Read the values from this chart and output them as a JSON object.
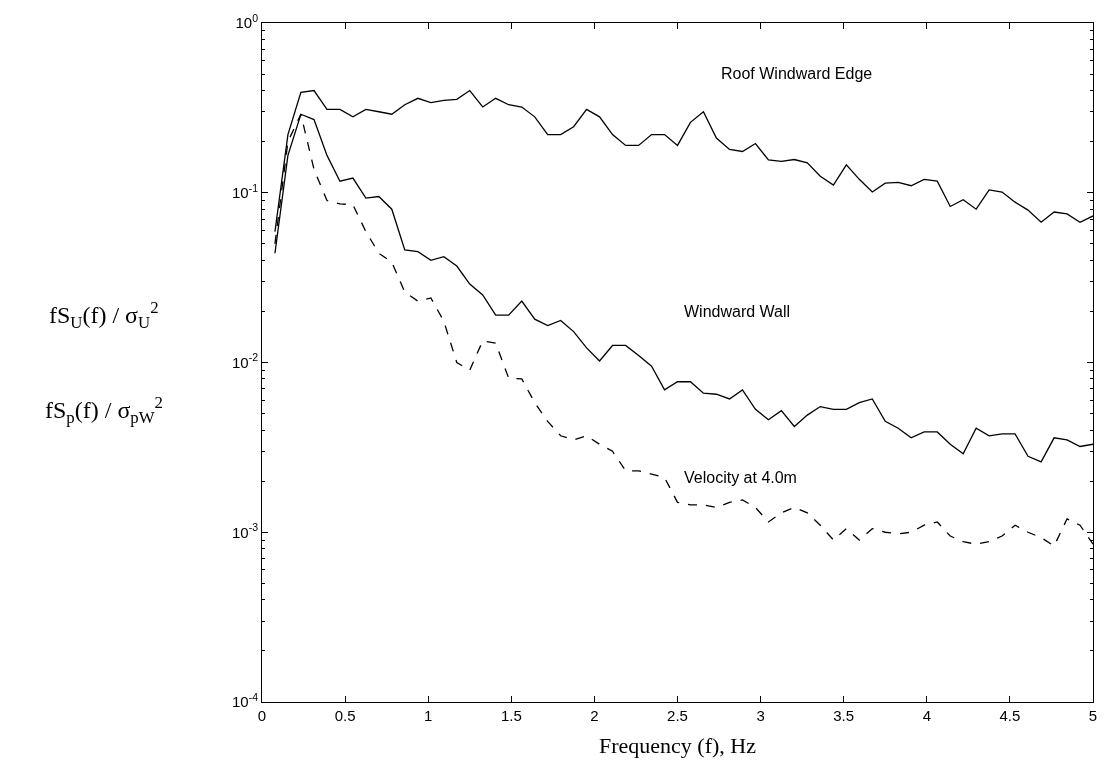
{
  "chart_data": {
    "type": "line",
    "xlabel": "Frequency (f), Hz",
    "ylabel": "fS$_{U}$(f) / σ$_{U}$$^{2}$",
    "x": [
      0.078,
      0.156,
      0.234,
      0.313,
      0.391,
      0.469,
      0.547,
      0.625,
      0.703,
      0.781,
      0.859,
      0.938,
      1.016,
      1.094,
      1.172,
      1.25,
      1.328,
      1.406,
      1.484,
      1.563,
      1.641,
      1.719,
      1.797,
      1.875,
      1.953,
      2.031,
      2.109,
      2.188,
      2.266,
      2.344,
      2.422,
      2.5,
      2.578,
      2.656,
      2.734,
      2.813,
      2.891,
      2.969,
      3.047,
      3.125,
      3.203,
      3.281,
      3.359,
      3.438,
      3.516,
      3.594,
      3.672,
      3.75,
      3.828,
      3.906,
      3.984,
      4.063,
      4.141,
      4.219,
      4.297,
      4.375,
      4.453,
      4.531,
      4.609,
      4.688,
      4.766,
      4.844,
      4.922,
      5.0
    ],
    "series": [
      {
        "color": "#000000",
        "line_style": "solid",
        "values": [
          0.059,
          0.22,
          0.39,
          0.4,
          0.31,
          0.31,
          0.28,
          0.31,
          0.3,
          0.29,
          0.33,
          0.36,
          0.34,
          0.35,
          0.355,
          0.4,
          0.32,
          0.36,
          0.33,
          0.32,
          0.28,
          0.22,
          0.22,
          0.245,
          0.31,
          0.28,
          0.22,
          0.19,
          0.19,
          0.22,
          0.22,
          0.19,
          0.26,
          0.3,
          0.21,
          0.18,
          0.175,
          0.195,
          0.156,
          0.153,
          0.157,
          0.15,
          0.125,
          0.111,
          0.146,
          0.12,
          0.101,
          0.114,
          0.115,
          0.11,
          0.12,
          0.117,
          0.083,
          0.091,
          0.08,
          0.104,
          0.101,
          0.088,
          0.079,
          0.067,
          0.077,
          0.075,
          0.067,
          0.073
        ]
      },
      {
        "color": "#000000",
        "line_style": "solid",
        "values": [
          0.044,
          0.166,
          0.29,
          0.27,
          0.166,
          0.117,
          0.122,
          0.093,
          0.095,
          0.08,
          0.046,
          0.045,
          0.04,
          0.042,
          0.037,
          0.029,
          0.025,
          0.019,
          0.019,
          0.023,
          0.018,
          0.0165,
          0.0177,
          0.0152,
          0.0122,
          0.0102,
          0.0126,
          0.0126,
          0.011,
          0.0095,
          0.0069,
          0.0077,
          0.0077,
          0.0066,
          0.0065,
          0.0061,
          0.0069,
          0.0053,
          0.0046,
          0.0052,
          0.0042,
          0.0049,
          0.0055,
          0.0053,
          0.0053,
          0.0058,
          0.0061,
          0.0045,
          0.0041,
          0.0036,
          0.0039,
          0.0039,
          0.0033,
          0.0029,
          0.0041,
          0.0037,
          0.0038,
          0.0038,
          0.0028,
          0.0026,
          0.0036,
          0.0035,
          0.0032,
          0.0033
        ]
      },
      {
        "color": "#000000",
        "line_style": "dashed",
        "values": [
          0.05,
          0.2,
          0.29,
          0.137,
          0.09,
          0.086,
          0.085,
          0.059,
          0.044,
          0.039,
          0.026,
          0.023,
          0.024,
          0.0175,
          0.01,
          0.009,
          0.0134,
          0.013,
          0.0081,
          0.008,
          0.0058,
          0.0045,
          0.0037,
          0.0035,
          0.0037,
          0.0033,
          0.003,
          0.0023,
          0.0023,
          0.0022,
          0.0021,
          0.0015,
          0.00145,
          0.00145,
          0.0014,
          0.0015,
          0.00155,
          0.0014,
          0.00115,
          0.0013,
          0.0014,
          0.0013,
          0.0011,
          0.0009,
          0.00105,
          0.0009,
          0.00105,
          0.001,
          0.00098,
          0.001,
          0.0011,
          0.00115,
          0.00095,
          0.00088,
          0.00085,
          0.00088,
          0.00095,
          0.0011,
          0.001,
          0.00093,
          0.00083,
          0.0012,
          0.0011,
          0.00085
        ]
      }
    ],
    "annotations": [
      "Roof Windward Edge",
      "Windward Wall",
      "Velocity at 4.0m",
      "fS$_{p}$(f) / σ$_{p}$$_{W}$$^{2}$"
    ],
    "log": "y",
    "xlim": [
      0,
      5
    ],
    "xticks": [
      0,
      0.5,
      1,
      1.5,
      2,
      2.5,
      3,
      3.5,
      4,
      4.5,
      5
    ],
    "ylim": [
      0.0001,
      1
    ],
    "yticks": [
      {
        "value": 0.0001,
        "label": "10$^{-4}$"
      },
      {
        "value": 0.001,
        "label": "10$^{-3}$"
      },
      {
        "value": 0.01,
        "label": "10$^{-2}$"
      },
      {
        "value": 0.1,
        "label": "10$^{-1}$"
      },
      {
        "value": 1,
        "label": "10$^{0}$"
      }
    ],
    "grid": false,
    "marker": "none"
  }
}
